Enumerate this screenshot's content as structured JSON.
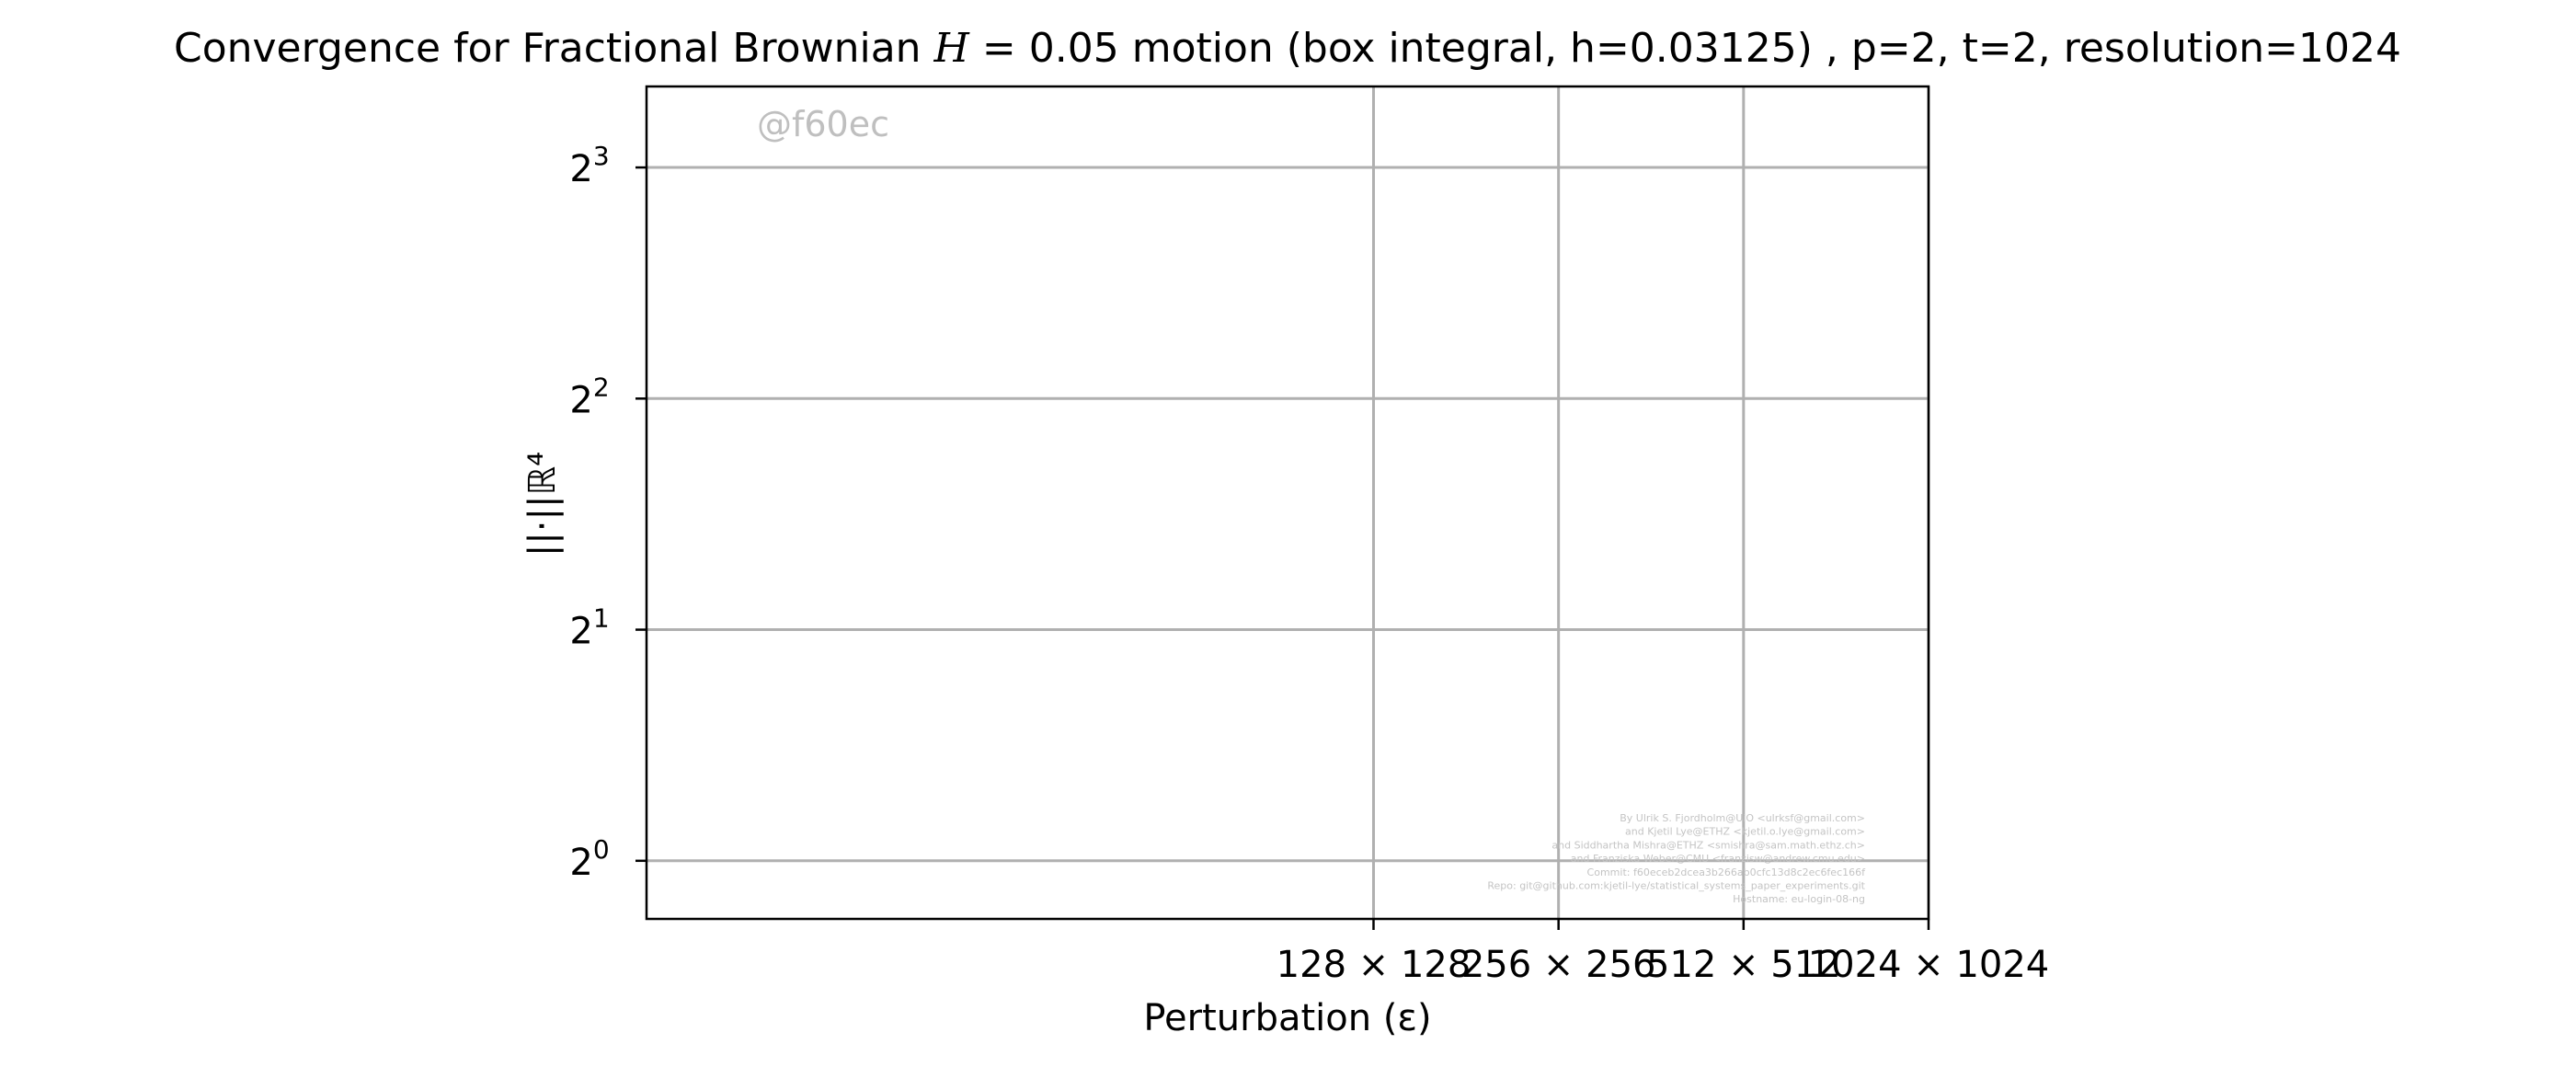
{
  "chart_data": {
    "type": "line",
    "title": {
      "prefix": "Convergence for Fractional Brownian ",
      "math_var": "H",
      "math_rest": " = 0.05",
      "suffix": " motion (box integral, h=0.03125) , p=2, t=2, resolution=1024"
    },
    "xlabel": "Perturbation (ε)",
    "ylabel": "||·||ℝ⁴",
    "y_scale": "log2",
    "ylim": [
      0.84,
      10.2
    ],
    "x_ticks": [
      {
        "value": 128,
        "label": "128 × 128"
      },
      {
        "value": 256,
        "label": "256 × 256"
      },
      {
        "value": 512,
        "label": "512 × 512"
      },
      {
        "value": 1024,
        "label": "1024 × 1024"
      }
    ],
    "y_ticks": [
      {
        "value": 1,
        "base": "2",
        "exp": "0"
      },
      {
        "value": 2,
        "base": "2",
        "exp": "1"
      },
      {
        "value": 4,
        "base": "2",
        "exp": "2"
      },
      {
        "value": 8,
        "base": "2",
        "exp": "3"
      }
    ],
    "grid": true,
    "series": []
  },
  "watermark": "@f60ec",
  "credits": [
    "By Ulrik S. Fjordholm@UiO <ulrksf@gmail.com>",
    "and Kjetil Lye@ETHZ <kjetil.o.lye@gmail.com>",
    "and Siddhartha Mishra@ETHZ <smishra@sam.math.ethz.ch>",
    "and Franziska Weber@CMU <franzisw@andrew.cmu.edu>",
    "Commit: f60eceb2dcea3b266ab0cfc13d8c2ec6fec166f",
    "Repo: git@github.com:kjetil-lye/statistical_systems_paper_experiments.git",
    "Hostname: eu-login-08-ng"
  ]
}
